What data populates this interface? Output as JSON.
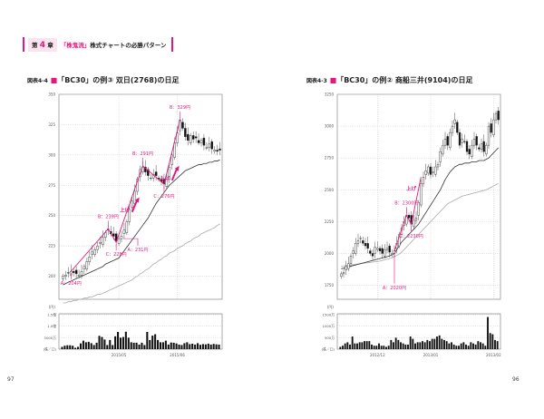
{
  "header": {
    "chapter_prefix": "第",
    "chapter_num": "4",
    "chapter_suffix": "章",
    "title_pink": "「株鬼流」",
    "title": "株式チャートの必勝パターン"
  },
  "page_numbers": {
    "left": "97",
    "right": "96"
  },
  "colors": {
    "accent": "#e4177f",
    "ma_short": "#333333",
    "ma_long": "#aaaaaa"
  },
  "chart_data": [
    {
      "type": "candlestick",
      "fig_no": "図表4-4",
      "title": "「BC30」の例③ 双日(2768)の日足",
      "ylim": [
        181,
        350
      ],
      "yticks": [
        200,
        225,
        250,
        275,
        300,
        325,
        350
      ],
      "yunit": "(円)",
      "xticks": [
        {
          "label": "2015/05",
          "index": 21
        },
        {
          "label": "2015/06",
          "index": 43
        }
      ],
      "closes": [
        200,
        201,
        203,
        204,
        203,
        202,
        201,
        204,
        208,
        212,
        216,
        220,
        222,
        225,
        228,
        232,
        236,
        239,
        235,
        233,
        229,
        231,
        233,
        238,
        245,
        255,
        262,
        270,
        280,
        288,
        290,
        286,
        283,
        281,
        284,
        283,
        280,
        278,
        276,
        280,
        290,
        300,
        310,
        318,
        329,
        322,
        315,
        312,
        316,
        313,
        314,
        310,
        312,
        308,
        306,
        309,
        305,
        304,
        303,
        304
      ],
      "ma_short": [
        193,
        194,
        195,
        196,
        197,
        198,
        199,
        200,
        201,
        202,
        203,
        204,
        205,
        206,
        207,
        208,
        210,
        211,
        212,
        213,
        214,
        215,
        218,
        221,
        224,
        227,
        230,
        233,
        236,
        239,
        242,
        245,
        248,
        252,
        256,
        260,
        263,
        266,
        269,
        272,
        275,
        277,
        279,
        281,
        283,
        285,
        287,
        288,
        289,
        290,
        291,
        292,
        292,
        293,
        293,
        294,
        294,
        295,
        295,
        296
      ],
      "ma_long": [
        178,
        178,
        179,
        179,
        180,
        180,
        181,
        181,
        182,
        182,
        183,
        183,
        184,
        185,
        185,
        186,
        187,
        188,
        189,
        190,
        191,
        192,
        193,
        194,
        195,
        196,
        197,
        199,
        200,
        202,
        203,
        205,
        206,
        208,
        210,
        211,
        213,
        214,
        216,
        217,
        219,
        220,
        221,
        223,
        224,
        225,
        227,
        228,
        229,
        231,
        232,
        233,
        235,
        236,
        237,
        238,
        239,
        240,
        242,
        243
      ],
      "volume": {
        "unit_labels": [
          "1.5億",
          "1.0億",
          "5000万",
          "(株／口)"
        ],
        "max": 15000,
        "values": [
          1000,
          1500,
          1700,
          1700,
          1500,
          600,
          1000,
          2500,
          3700,
          3000,
          3200,
          2600,
          1800,
          2800,
          5800,
          5300,
          4200,
          1800,
          4000,
          1800,
          5600,
          7500,
          5000,
          5300,
          7600,
          5000,
          3000,
          2800,
          2800,
          2000,
          2800,
          1800,
          7500,
          4000,
          5900,
          6500,
          4000,
          3000,
          3000,
          3700,
          2000,
          2900,
          2800,
          2500,
          2000,
          1800,
          2600,
          3000,
          2200,
          2400,
          2000,
          2600,
          1900,
          2200,
          2100,
          2400,
          2000,
          2300,
          2100,
          2000
        ]
      },
      "zigzag": [
        [
          3,
          204
        ],
        [
          17,
          239
        ],
        [
          20,
          228
        ],
        [
          30,
          291
        ],
        [
          38,
          276
        ],
        [
          44,
          329
        ]
      ],
      "annotations": [
        {
          "text": "A：204円",
          "index": 3,
          "price": 204,
          "pos": "below"
        },
        {
          "text": "B：239円",
          "index": 17,
          "price": 239,
          "pos": "above"
        },
        {
          "text": "C：228円",
          "index": 20,
          "price": 228,
          "pos": "below"
        },
        {
          "text": "A：231円",
          "index": 22,
          "price": 231,
          "pos": "belowright"
        },
        {
          "text": "B：291円",
          "index": 30,
          "price": 291,
          "pos": "above"
        },
        {
          "text": "C：276円",
          "index": 38,
          "price": 276,
          "pos": "below"
        },
        {
          "text": "B：329円",
          "index": 44,
          "price": 329,
          "pos": "above"
        }
      ],
      "arrows": [
        {
          "text": "上げ",
          "index": 26,
          "price": 262
        },
        {
          "text": "上げ",
          "index": 41,
          "price": 288
        }
      ]
    },
    {
      "type": "candlestick",
      "fig_no": "図表4-3",
      "title": "「BC30」の例② 商船三井(9104)の日足",
      "ylim": [
        1640,
        3250
      ],
      "yticks": [
        1750,
        2000,
        2250,
        2500,
        2750,
        3000,
        3250
      ],
      "yunit": "(円)",
      "xticks": [
        {
          "label": "2012/12",
          "index": 15
        },
        {
          "label": "2013/01",
          "index": 37
        },
        {
          "label": "2013/02",
          "index": 63
        }
      ],
      "closes": [
        1840,
        1850,
        1900,
        1920,
        1980,
        2020,
        2080,
        2100,
        2120,
        2080,
        2060,
        2040,
        2000,
        1980,
        2050,
        2040,
        2020,
        2000,
        2030,
        2040,
        2010,
        2000,
        2020,
        2080,
        2150,
        2200,
        2250,
        2300,
        2280,
        2230,
        2260,
        2280,
        2400,
        2550,
        2600,
        2650,
        2680,
        2620,
        2640,
        2680,
        2700,
        2800,
        2850,
        2900,
        2850,
        2950,
        3000,
        3050,
        2950,
        2850,
        2900,
        2880,
        2800,
        2780,
        2850,
        2900,
        2850,
        2820,
        2860,
        2800,
        2850,
        3000,
        2950,
        3050,
        3100,
        3050
      ],
      "ma_short": [
        1880,
        1885,
        1890,
        1895,
        1900,
        1905,
        1910,
        1915,
        1920,
        1925,
        1930,
        1935,
        1940,
        1945,
        1950,
        1955,
        1960,
        1965,
        1970,
        1975,
        1980,
        1990,
        2000,
        2030,
        2060,
        2090,
        2110,
        2130,
        2150,
        2170,
        2190,
        2210,
        2230,
        2260,
        2290,
        2320,
        2350,
        2380,
        2410,
        2440,
        2470,
        2500,
        2540,
        2580,
        2610,
        2640,
        2660,
        2680,
        2690,
        2700,
        2700,
        2710,
        2710,
        2710,
        2720,
        2720,
        2720,
        2730,
        2730,
        2730,
        2740,
        2750,
        2770,
        2790,
        2810,
        2830
      ],
      "ma_long": [
        1900,
        1902,
        1905,
        1908,
        1910,
        1912,
        1915,
        1918,
        1920,
        1922,
        1925,
        1928,
        1930,
        1932,
        1935,
        1938,
        1940,
        1945,
        1950,
        1955,
        1960,
        1965,
        1975,
        1985,
        1995,
        2010,
        2030,
        2050,
        2070,
        2090,
        2110,
        2130,
        2150,
        2170,
        2190,
        2210,
        2230,
        2250,
        2270,
        2290,
        2310,
        2330,
        2350,
        2370,
        2390,
        2400,
        2410,
        2420,
        2430,
        2440,
        2450,
        2455,
        2460,
        2465,
        2470,
        2475,
        2480,
        2485,
        2490,
        2495,
        2500,
        2510,
        2520,
        2530,
        2540,
        2550
      ],
      "volume": {
        "unit_labels": [
          "1500万",
          "1000万",
          "500万",
          "(株／口)"
        ],
        "max": 1500,
        "values": [
          100,
          150,
          250,
          300,
          200,
          550,
          250,
          250,
          300,
          300,
          350,
          350,
          350,
          200,
          150,
          150,
          250,
          150,
          150,
          100,
          150,
          400,
          300,
          500,
          400,
          300,
          250,
          200,
          200,
          550,
          450,
          250,
          300,
          300,
          350,
          300,
          400,
          350,
          450,
          450,
          550,
          600,
          450,
          400,
          350,
          250,
          300,
          200,
          150,
          150,
          250,
          300,
          200,
          150,
          300,
          250,
          200,
          350,
          300,
          250,
          150,
          1400,
          700,
          650,
          400,
          350
        ]
      },
      "zigzag": [
        [
          22,
          2020
        ],
        [
          27,
          2300
        ],
        [
          29,
          2230
        ],
        [
          33,
          2600
        ]
      ],
      "annotations": [
        {
          "text": "A：2020円",
          "index": 22,
          "price": 2020,
          "pos": "farbelow"
        },
        {
          "text": "B：2300円",
          "index": 27,
          "price": 2300,
          "pos": "above"
        },
        {
          "text": "C：2230円",
          "index": 29,
          "price": 2230,
          "pos": "below"
        }
      ],
      "arrows": [
        {
          "text": "上げ",
          "index": 32,
          "price": 2580,
          "noarrow": true
        }
      ]
    }
  ]
}
